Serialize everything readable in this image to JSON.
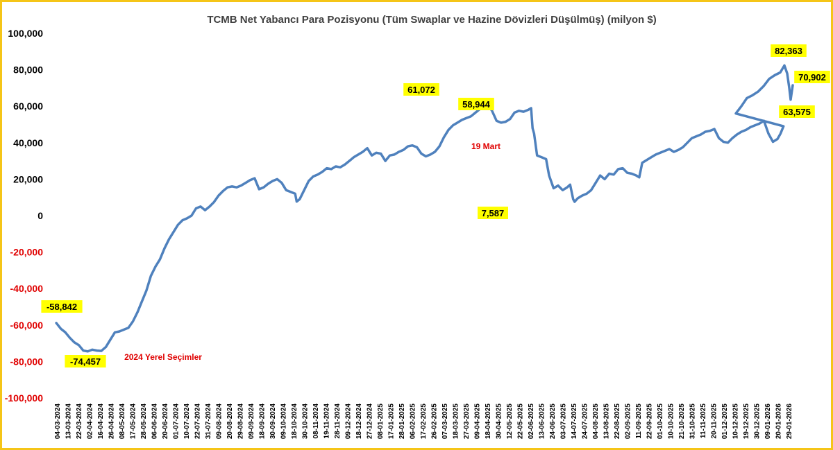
{
  "colors": {
    "line": "#4f81bd",
    "positive_tick": "#000000",
    "negative_tick": "#e00000",
    "label_bg": "#ffff00",
    "annotation": "#e00000",
    "frame": "#f5c518"
  },
  "chart_data": {
    "type": "line",
    "title": "TCMB Net Yabancı Para Pozisyonu (Tüm Swaplar ve Hazine Dövizleri Düşülmüş) (milyon $)",
    "xlabel": "",
    "ylabel": "",
    "ylim": [
      -100000,
      100000
    ],
    "yticks": [
      100000,
      80000,
      60000,
      40000,
      20000,
      0,
      -20000,
      -40000,
      -60000,
      -80000,
      -100000
    ],
    "ytick_labels": [
      "100,000",
      "80,000",
      "60,000",
      "40,000",
      "20,000",
      "0",
      "-20,000",
      "-40,000",
      "-60,000",
      "-80,000",
      "-100,000"
    ],
    "grid": false,
    "legend": "none",
    "x_tick_labels": [
      "04-03-2024",
      "13-03-2024",
      "22-03-2024",
      "02-04-2024",
      "16-04-2024",
      "26-04-2024",
      "08-05-2024",
      "17-05-2024",
      "28-05-2024",
      "06-06-2024",
      "20-06-2024",
      "01-07-2024",
      "10-07-2024",
      "22-07-2024",
      "31-07-2024",
      "09-08-2024",
      "20-08-2024",
      "29-08-2024",
      "09-09-2024",
      "18-09-2024",
      "30-09-2024",
      "09-10-2024",
      "18-10-2024",
      "30-10-2024",
      "08-11-2024",
      "19-11-2024",
      "28-11-2024",
      "09-12-2024",
      "18-12-2024",
      "27-12-2024",
      "08-01-2025",
      "17-01-2025",
      "28-01-2025",
      "06-02-2025",
      "17-02-2025",
      "26-02-2025",
      "07-03-2025",
      "18-03-2025",
      "27-03-2025",
      "09-04-2025",
      "18-04-2025",
      "30-04-2025",
      "12-05-2025",
      "22-05-2025",
      "02-06-2025",
      "13-06-2025",
      "24-06-2025",
      "03-07-2025",
      "14-07-2025",
      "24-07-2025",
      "04-08-2025",
      "13-08-2025",
      "22-08-2025",
      "02-09-2025",
      "11-09-2025",
      "22-09-2025",
      "01-10-2025",
      "10-10-2025",
      "21-10-2025",
      "31-10-2025",
      "11-11-2025",
      "20-11-2025",
      "01-12-2025",
      "10-12-2025",
      "19-12-2025",
      "30-12-2025",
      "09-01-2026",
      "20-01-2026",
      "29-01-2026"
    ],
    "x_count": 485,
    "series": [
      {
        "name": "",
        "points": [
          [
            0,
            -58842
          ],
          [
            3,
            -62000
          ],
          [
            6,
            -64000
          ],
          [
            9,
            -67000
          ],
          [
            12,
            -69500
          ],
          [
            15,
            -71000
          ],
          [
            18,
            -74000
          ],
          [
            21,
            -74457
          ],
          [
            24,
            -73500
          ],
          [
            27,
            -74000
          ],
          [
            30,
            -74200
          ],
          [
            33,
            -72000
          ],
          [
            36,
            -68000
          ],
          [
            39,
            -64000
          ],
          [
            42,
            -63500
          ],
          [
            45,
            -62500
          ],
          [
            48,
            -61500
          ],
          [
            51,
            -58000
          ],
          [
            54,
            -53000
          ],
          [
            57,
            -47000
          ],
          [
            60,
            -41000
          ],
          [
            63,
            -33000
          ],
          [
            66,
            -28000
          ],
          [
            69,
            -24000
          ],
          [
            72,
            -18000
          ],
          [
            75,
            -13000
          ],
          [
            78,
            -9000
          ],
          [
            81,
            -5000
          ],
          [
            84,
            -2500
          ],
          [
            87,
            -1500
          ],
          [
            90,
            0
          ],
          [
            93,
            4000
          ],
          [
            96,
            5000
          ],
          [
            99,
            3000
          ],
          [
            102,
            5000
          ],
          [
            105,
            7500
          ],
          [
            108,
            11000
          ],
          [
            111,
            13500
          ],
          [
            114,
            15500
          ],
          [
            117,
            16000
          ],
          [
            120,
            15500
          ],
          [
            123,
            16500
          ],
          [
            126,
            18000
          ],
          [
            129,
            19500
          ],
          [
            132,
            20500
          ],
          [
            135,
            14500
          ],
          [
            138,
            15500
          ],
          [
            141,
            17500
          ],
          [
            144,
            19000
          ],
          [
            147,
            20000
          ],
          [
            150,
            18000
          ],
          [
            153,
            14000
          ],
          [
            156,
            13000
          ],
          [
            159,
            12000
          ],
          [
            160,
            7700
          ],
          [
            162,
            9000
          ],
          [
            165,
            14000
          ],
          [
            168,
            19000
          ],
          [
            171,
            21500
          ],
          [
            174,
            22500
          ],
          [
            177,
            24000
          ],
          [
            180,
            26000
          ],
          [
            183,
            25500
          ],
          [
            186,
            27000
          ],
          [
            189,
            26500
          ],
          [
            192,
            28000
          ],
          [
            195,
            30000
          ],
          [
            198,
            32000
          ],
          [
            201,
            33500
          ],
          [
            204,
            35000
          ],
          [
            207,
            37000
          ],
          [
            210,
            33000
          ],
          [
            213,
            34500
          ],
          [
            216,
            34000
          ],
          [
            219,
            30000
          ],
          [
            222,
            33000
          ],
          [
            225,
            33500
          ],
          [
            228,
            35000
          ],
          [
            231,
            36000
          ],
          [
            234,
            38000
          ],
          [
            237,
            38500
          ],
          [
            240,
            37500
          ],
          [
            243,
            34000
          ],
          [
            246,
            32500
          ],
          [
            249,
            33500
          ],
          [
            252,
            35000
          ],
          [
            255,
            38000
          ],
          [
            258,
            43000
          ],
          [
            261,
            47000
          ],
          [
            264,
            49500
          ],
          [
            267,
            51000
          ],
          [
            270,
            52500
          ],
          [
            273,
            53500
          ],
          [
            276,
            54500
          ],
          [
            279,
            56500
          ],
          [
            282,
            58500
          ],
          [
            285,
            60000
          ],
          [
            287,
            61072
          ],
          [
            290,
            57500
          ],
          [
            293,
            52000
          ],
          [
            296,
            51000
          ],
          [
            299,
            51500
          ],
          [
            302,
            53000
          ],
          [
            305,
            56500
          ],
          [
            308,
            57500
          ],
          [
            311,
            57000
          ],
          [
            314,
            58000
          ],
          [
            316,
            58944
          ],
          [
            317,
            48000
          ],
          [
            318,
            45000
          ],
          [
            320,
            33000
          ],
          [
            323,
            32000
          ],
          [
            326,
            31000
          ],
          [
            328,
            22000
          ],
          [
            331,
            15000
          ],
          [
            334,
            16500
          ],
          [
            337,
            14000
          ],
          [
            340,
            15500
          ],
          [
            342,
            17000
          ],
          [
            344,
            9000
          ],
          [
            345,
            7587
          ],
          [
            347,
            9500
          ],
          [
            350,
            11000
          ],
          [
            353,
            12000
          ],
          [
            356,
            14000
          ],
          [
            359,
            18000
          ],
          [
            362,
            22000
          ],
          [
            365,
            20000
          ],
          [
            368,
            23000
          ],
          [
            371,
            22500
          ],
          [
            374,
            25500
          ],
          [
            377,
            26000
          ],
          [
            380,
            23500
          ],
          [
            383,
            23000
          ],
          [
            386,
            22000
          ],
          [
            388,
            21000
          ],
          [
            390,
            29000
          ],
          [
            393,
            30500
          ],
          [
            396,
            32000
          ],
          [
            399,
            33500
          ],
          [
            402,
            34500
          ],
          [
            405,
            35500
          ],
          [
            408,
            36500
          ],
          [
            411,
            35000
          ],
          [
            414,
            36000
          ],
          [
            417,
            37500
          ],
          [
            420,
            40000
          ],
          [
            423,
            42500
          ],
          [
            426,
            43500
          ],
          [
            429,
            44500
          ],
          [
            432,
            46000
          ],
          [
            435,
            46500
          ],
          [
            438,
            47500
          ],
          [
            441,
            42500
          ],
          [
            444,
            40500
          ],
          [
            447,
            40000
          ],
          [
            450,
            42500
          ],
          [
            453,
            44500
          ],
          [
            456,
            46000
          ],
          [
            459,
            47000
          ],
          [
            462,
            48500
          ],
          [
            465,
            49500
          ],
          [
            468,
            50500
          ],
          [
            471,
            52000
          ],
          [
            474,
            45000
          ],
          [
            477,
            40500
          ],
          [
            480,
            42000
          ],
          [
            482,
            45000
          ],
          [
            484,
            49000
          ]
        ]
      }
    ],
    "data_labels": [
      {
        "x": 0,
        "y": -58842,
        "text": "-58,842"
      },
      {
        "x": 21,
        "y": -74457,
        "text": "-74,457"
      },
      {
        "x": 287,
        "y": 61072,
        "text": "61,072"
      },
      {
        "x": 316,
        "y": 58944,
        "text": "58,944"
      },
      {
        "x": 345,
        "y": 7587,
        "text": "7,587"
      }
    ],
    "annotations": [
      {
        "text": "2024 Yerel Seçimler"
      },
      {
        "text": "19 Mart"
      }
    ]
  },
  "extra_labels": {
    "late_labels": [
      {
        "text": "82,363"
      },
      {
        "text": "70,902"
      },
      {
        "text": "63,575"
      }
    ]
  }
}
